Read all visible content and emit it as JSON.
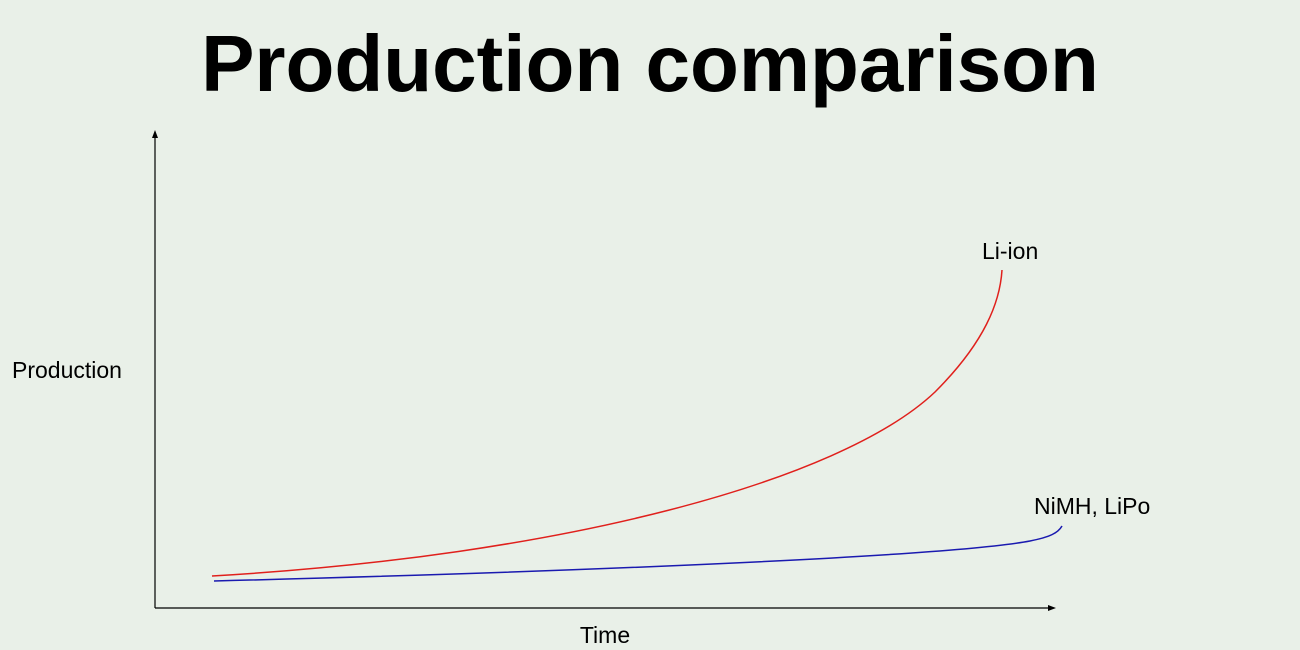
{
  "title": "Production comparison",
  "y_axis_label": "Production",
  "x_axis_label": "Time",
  "curves": [
    {
      "label": "Li-ion"
    },
    {
      "label": "NiMH, LiPo"
    }
  ]
}
